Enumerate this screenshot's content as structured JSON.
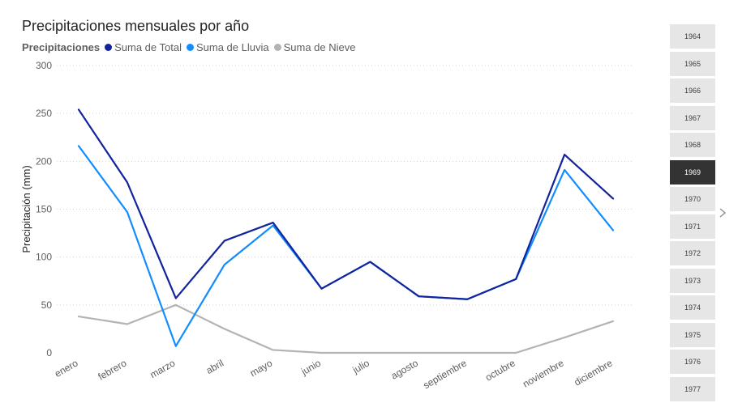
{
  "chart_title": "Precipitaciones mensuales por año",
  "legend": {
    "heading": "Precipitaciones",
    "items": [
      {
        "label": "Suma de Total",
        "color": "#12239e"
      },
      {
        "label": "Suma de Lluvia",
        "color": "#118dff"
      },
      {
        "label": "Suma de Nieve",
        "color": "#b3b3b3"
      }
    ]
  },
  "slicer": {
    "years": [
      "1964",
      "1965",
      "1966",
      "1967",
      "1968",
      "1969",
      "1970",
      "1971",
      "1972",
      "1973",
      "1974",
      "1975",
      "1976",
      "1977"
    ],
    "selected": "1969",
    "next_icon": "chevron-right-icon"
  },
  "chart_data": {
    "type": "line",
    "title": "Precipitaciones mensuales por año",
    "ylabel": "Precipitación (mm)",
    "xlabel": "",
    "categories": [
      "enero",
      "febrero",
      "marzo",
      "abril",
      "mayo",
      "junio",
      "julio",
      "agosto",
      "septiembre",
      "octubre",
      "noviembre",
      "diciembre"
    ],
    "ylim": [
      0,
      300
    ],
    "yticks": [
      0,
      50,
      100,
      150,
      200,
      250,
      300
    ],
    "grid": true,
    "legend_position": "top-left",
    "series": [
      {
        "name": "Suma de Total",
        "color": "#12239e",
        "values": [
          254,
          178,
          57,
          117,
          136,
          67,
          95,
          59,
          56,
          77,
          207,
          161
        ]
      },
      {
        "name": "Suma de Lluvia",
        "color": "#118dff",
        "values": [
          216,
          147,
          7,
          92,
          133,
          67,
          95,
          59,
          56,
          77,
          191,
          128
        ]
      },
      {
        "name": "Suma de Nieve",
        "color": "#b3b3b3",
        "values": [
          38,
          30,
          50,
          25,
          3,
          0,
          0,
          0,
          0,
          0,
          16,
          33
        ]
      }
    ]
  }
}
